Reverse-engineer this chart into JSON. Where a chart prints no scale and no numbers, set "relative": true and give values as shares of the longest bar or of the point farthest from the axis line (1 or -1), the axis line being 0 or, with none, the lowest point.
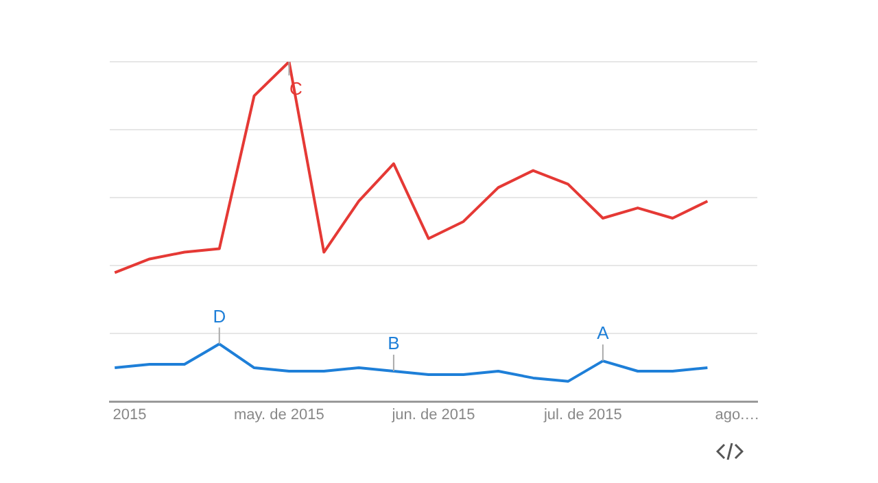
{
  "chart_data": {
    "type": "line",
    "relative": true,
    "grid": "y",
    "legend": false,
    "marker": "none",
    "line_style": "solid",
    "x": [
      "2015-03-29",
      "2015-04-05",
      "2015-04-12",
      "2015-04-19",
      "2015-04-26",
      "2015-05-03",
      "2015-05-10",
      "2015-05-17",
      "2015-05-24",
      "2015-05-31",
      "2015-06-07",
      "2015-06-14",
      "2015-06-21",
      "2015-06-28",
      "2015-07-05",
      "2015-07-12",
      "2015-07-19",
      "2015-07-26"
    ],
    "xlim": [
      "2015-03-28",
      "2015-08-05"
    ],
    "xticks": [
      {
        "value": "2015-04-01",
        "label": "2015"
      },
      {
        "value": "2015-05-01",
        "label": "may. de 2015"
      },
      {
        "value": "2015-06-01",
        "label": "jun. de 2015"
      },
      {
        "value": "2015-07-01",
        "label": "jul. de 2015"
      },
      {
        "value": "2015-08-01",
        "label": "ago.…"
      }
    ],
    "series": [
      {
        "color": "#e53935",
        "values": [
          0.38,
          0.42,
          0.44,
          0.45,
          0.9,
          1,
          0.44,
          0.59,
          0.7,
          0.48,
          0.53,
          0.63,
          0.68,
          0.64,
          0.54,
          0.57,
          0.54,
          0.59
        ]
      },
      {
        "color": "#1e7fd8",
        "values": [
          0.1,
          0.11,
          0.11,
          0.17,
          0.1,
          0.09,
          0.09,
          0.1,
          0.09,
          0.08,
          0.08,
          0.09,
          0.07,
          0.06,
          0.12,
          0.09,
          0.09,
          0.1
        ]
      }
    ],
    "annotations": [
      {
        "text": "C",
        "x": "2015-05-03",
        "y": 1
      },
      {
        "text": "D",
        "x": "2015-04-19",
        "y": 0.17
      },
      {
        "text": "B",
        "x": "2015-05-24",
        "y": 0.09
      },
      {
        "text": "A",
        "x": "2015-07-05",
        "y": 0.12
      }
    ]
  }
}
